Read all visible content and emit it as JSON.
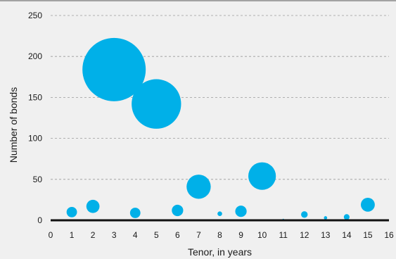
{
  "chart_data": {
    "type": "scatter",
    "variant": "bubble",
    "xlabel": "Tenor, in years",
    "ylabel": "Number of bonds",
    "xlim": [
      0,
      16
    ],
    "ylim": [
      0,
      250
    ],
    "xticks": [
      "0",
      "1",
      "2",
      "3",
      "4",
      "5",
      "6",
      "7",
      "8",
      "9",
      "10",
      "11",
      "12",
      "13",
      "14",
      "15",
      "16"
    ],
    "yticks": [
      "0",
      "50",
      "100",
      "150",
      "200",
      "250"
    ],
    "grid": {
      "y": true,
      "x": false,
      "style": "dashed"
    },
    "top_border": true,
    "colors": {
      "bubble": "#00b0e8",
      "background": "#f0f0f0",
      "grid": "#9a9a9a",
      "axis": "#111111"
    },
    "points": [
      {
        "x": 1,
        "y": 10,
        "size": 5
      },
      {
        "x": 2,
        "y": 17,
        "size": 8
      },
      {
        "x": 3,
        "y": 184,
        "size": 185
      },
      {
        "x": 4,
        "y": 9,
        "size": 5
      },
      {
        "x": 5,
        "y": 142,
        "size": 113
      },
      {
        "x": 6,
        "y": 12,
        "size": 6
      },
      {
        "x": 7,
        "y": 41,
        "size": 27
      },
      {
        "x": 8,
        "y": 8,
        "size": 1
      },
      {
        "x": 9,
        "y": 11,
        "size": 6
      },
      {
        "x": 10,
        "y": 54,
        "size": 35
      },
      {
        "x": 11,
        "y": 1,
        "size": 0.1
      },
      {
        "x": 12,
        "y": 7,
        "size": 2
      },
      {
        "x": 13,
        "y": 3,
        "size": 0.5
      },
      {
        "x": 14,
        "y": 4,
        "size": 1.5
      },
      {
        "x": 15,
        "y": 19,
        "size": 9
      }
    ]
  }
}
